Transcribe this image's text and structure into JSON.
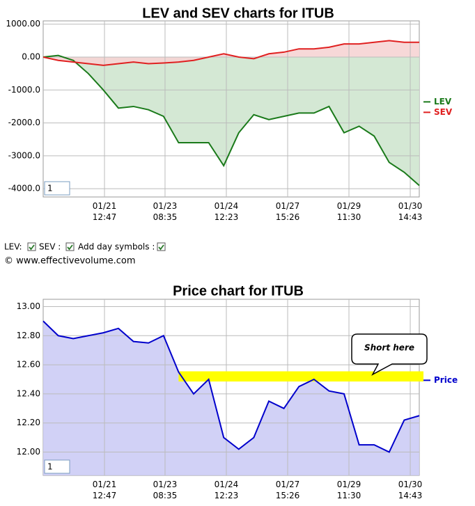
{
  "chart_data": [
    {
      "type": "area-line",
      "title": "LEV and SEV charts for ITUB",
      "x": [
        0,
        4,
        8,
        12,
        16,
        20,
        24,
        28,
        32,
        36,
        40,
        44,
        48,
        52,
        56,
        60,
        64,
        68,
        72,
        76,
        80,
        84,
        88,
        92,
        96,
        100
      ],
      "xlim": [
        0,
        100
      ],
      "xticks": [
        {
          "value": 16.3,
          "label": "01/21\n12:47"
        },
        {
          "value": 32.4,
          "label": "01/23\n08:35"
        },
        {
          "value": 48.7,
          "label": "01/24\n12:23"
        },
        {
          "value": 65,
          "label": "01/27\n15:26"
        },
        {
          "value": 81.3,
          "label": "01/29\n11:30"
        },
        {
          "value": 97.6,
          "label": "01/30\n14:43"
        }
      ],
      "ylim": [
        -4250,
        1100
      ],
      "yticks": [
        {
          "value": 1000,
          "label": "1000.00"
        },
        {
          "value": 0,
          "label": "0.00"
        },
        {
          "value": -1000,
          "label": "-1000.0"
        },
        {
          "value": -2000,
          "label": "-2000.0"
        },
        {
          "value": -3000,
          "label": "-3000.0"
        },
        {
          "value": -4000,
          "label": "-4000.0"
        }
      ],
      "grid": true,
      "legend": "right",
      "area_base": "zero",
      "input_value": "1",
      "series": [
        {
          "name": "LEV",
          "color": "#1a7a1a",
          "fill_color": "#cfe5cf",
          "values": [
            0,
            50,
            -100,
            -500,
            -1000,
            -1550,
            -1500,
            -1600,
            -1800,
            -2600,
            -2600,
            -2600,
            -3300,
            -2300,
            -1750,
            -1900,
            -1800,
            -1700,
            -1700,
            -1500,
            -2300,
            -2100,
            -2400,
            -3200,
            -3500,
            -3900
          ]
        },
        {
          "name": "SEV",
          "color": "#e02020",
          "fill_color": "#f6d4d4",
          "values": [
            0,
            -100,
            -150,
            -200,
            -250,
            -200,
            -150,
            -200,
            -180,
            -150,
            -100,
            0,
            100,
            0,
            -50,
            100,
            150,
            250,
            250,
            300,
            400,
            400,
            450,
            500,
            450,
            450
          ]
        }
      ]
    },
    {
      "type": "area-line",
      "title": "Price chart for ITUB",
      "x": [
        0,
        4,
        8,
        12,
        16,
        20,
        24,
        28,
        32,
        36,
        40,
        44,
        48,
        52,
        56,
        60,
        64,
        68,
        72,
        76,
        80,
        84,
        88,
        92,
        96,
        100
      ],
      "xlim": [
        0,
        100
      ],
      "xticks": [
        {
          "value": 16.3,
          "label": "01/21\n12:47"
        },
        {
          "value": 32.4,
          "label": "01/23\n08:35"
        },
        {
          "value": 48.7,
          "label": "01/24\n12:23"
        },
        {
          "value": 65,
          "label": "01/27\n15:26"
        },
        {
          "value": 81.3,
          "label": "01/29\n11:30"
        },
        {
          "value": 97.6,
          "label": "01/30\n14:43"
        }
      ],
      "ylim": [
        11.84,
        13.05
      ],
      "yticks": [
        {
          "value": 13,
          "label": "13.00"
        },
        {
          "value": 12.8,
          "label": "12.80"
        },
        {
          "value": 12.6,
          "label": "12.60"
        },
        {
          "value": 12.4,
          "label": "12.40"
        },
        {
          "value": 12.2,
          "label": "12.20"
        },
        {
          "value": 12,
          "label": "12.00"
        }
      ],
      "grid": true,
      "legend": "right",
      "area_base": "bottom",
      "input_value": "1",
      "highlight": {
        "x": [
          36,
          100
        ],
        "y": [
          12.485,
          12.555
        ],
        "color": "#ffff00"
      },
      "annotation": "Short here",
      "series": [
        {
          "name": "Price",
          "color": "#0000cc",
          "fill_color": "#ccccf5",
          "values": [
            12.9,
            12.8,
            12.78,
            12.8,
            12.82,
            12.85,
            12.76,
            12.75,
            12.8,
            12.55,
            12.4,
            12.5,
            12.1,
            12.02,
            12.1,
            12.35,
            12.3,
            12.45,
            12.5,
            12.42,
            12.4,
            12.05,
            12.05,
            12,
            12.22,
            12.25
          ]
        }
      ]
    }
  ],
  "controls": {
    "lev": "LEV:",
    "sev": "SEV :",
    "day": "Add day symbols :"
  },
  "copyright": "© www.effectivevolume.com"
}
